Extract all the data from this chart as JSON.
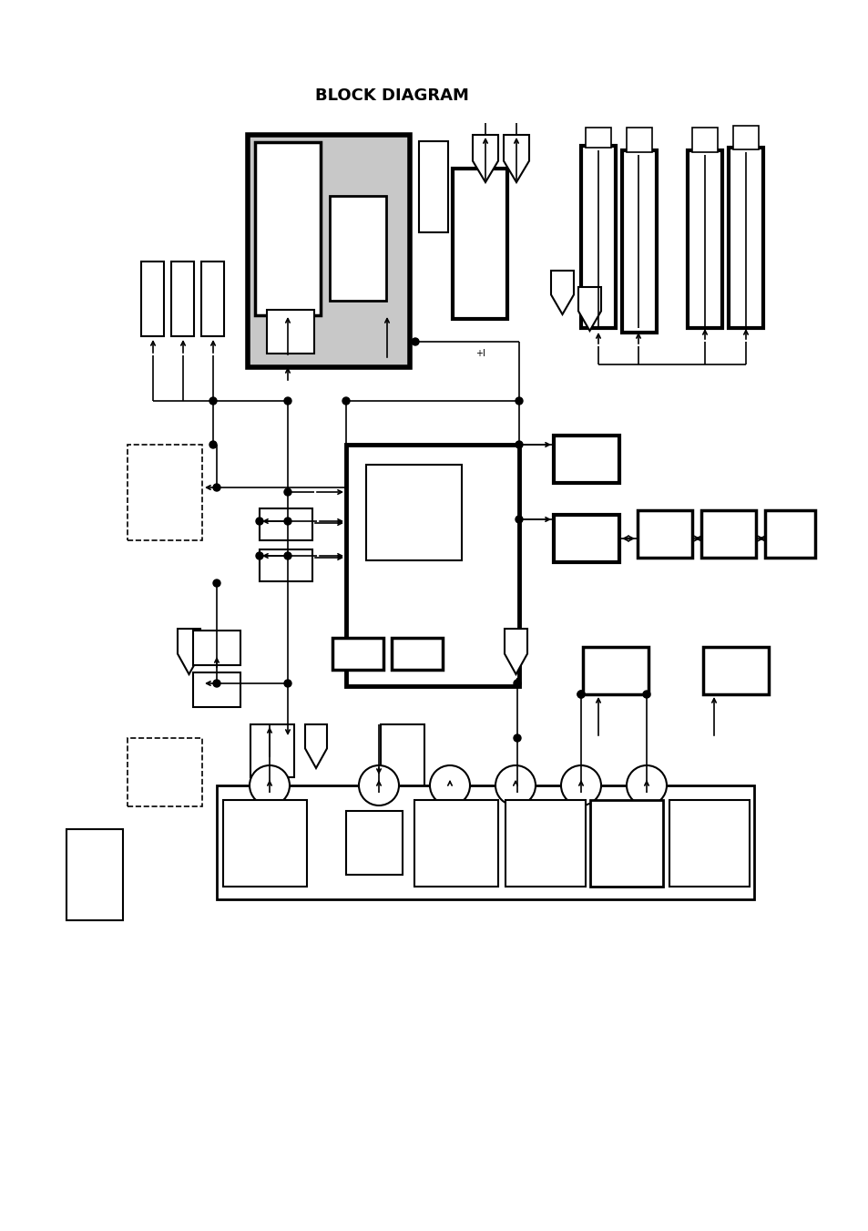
{
  "title": "BLOCK DIAGRAM",
  "bg_color": "#ffffff",
  "line_color": "#000000",
  "fig_width": 9.54,
  "fig_height": 13.51,
  "dpi": 100
}
